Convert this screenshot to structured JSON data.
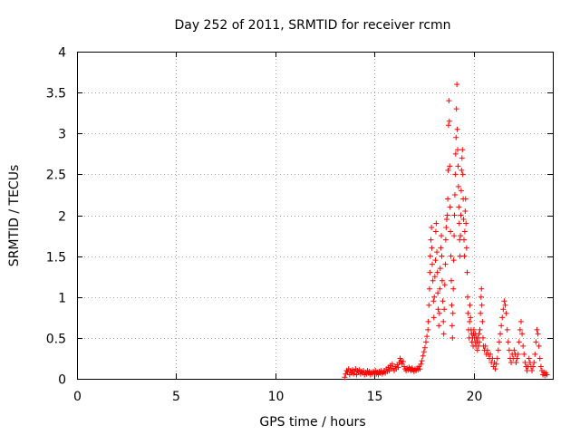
{
  "chart_data": {
    "type": "scatter",
    "title": "Day 252 of 2011, SRMTID for receiver rcmn",
    "xlabel": "GPS time / hours",
    "ylabel": "SRMTID / TECUs",
    "xlim": [
      0,
      24
    ],
    "ylim": [
      0,
      4
    ],
    "xticks": [
      0,
      5,
      10,
      15,
      20
    ],
    "xtick_labels": [
      "0",
      "5",
      "10",
      "15",
      "20"
    ],
    "yticks": [
      0,
      0.5,
      1,
      1.5,
      2,
      2.5,
      3,
      3.5,
      4
    ],
    "ytick_labels": [
      "0",
      "0.5",
      "1",
      "1.5",
      "2",
      "2.5",
      "3",
      "3.5",
      "4"
    ],
    "grid": true,
    "marker": "+",
    "color": "#ff0000",
    "series": [
      {
        "points": [
          [
            13.5,
            0.02
          ],
          [
            13.55,
            0.06
          ],
          [
            13.6,
            0.1
          ],
          [
            13.65,
            0.08
          ],
          [
            13.7,
            0.12
          ],
          [
            13.75,
            0.05
          ],
          [
            13.8,
            0.1
          ],
          [
            13.85,
            0.07
          ],
          [
            13.9,
            0.11
          ],
          [
            13.95,
            0.06
          ],
          [
            14.0,
            0.09
          ],
          [
            14.05,
            0.12
          ],
          [
            14.1,
            0.05
          ],
          [
            14.15,
            0.1
          ],
          [
            14.2,
            0.08
          ],
          [
            14.25,
            0.11
          ],
          [
            14.3,
            0.06
          ],
          [
            14.35,
            0.09
          ],
          [
            14.4,
            0.07
          ],
          [
            14.45,
            0.1
          ],
          [
            14.5,
            0.05
          ],
          [
            14.55,
            0.08
          ],
          [
            14.6,
            0.06
          ],
          [
            14.65,
            0.1
          ],
          [
            14.7,
            0.07
          ],
          [
            14.75,
            0.09
          ],
          [
            14.8,
            0.05
          ],
          [
            14.85,
            0.08
          ],
          [
            14.9,
            0.06
          ],
          [
            14.95,
            0.09
          ],
          [
            15.0,
            0.07
          ],
          [
            15.05,
            0.1
          ],
          [
            15.1,
            0.06
          ],
          [
            15.15,
            0.08
          ],
          [
            15.2,
            0.05
          ],
          [
            15.25,
            0.09
          ],
          [
            15.3,
            0.07
          ],
          [
            15.35,
            0.1
          ],
          [
            15.4,
            0.06
          ],
          [
            15.45,
            0.08
          ],
          [
            15.5,
            0.1
          ],
          [
            15.55,
            0.07
          ],
          [
            15.6,
            0.12
          ],
          [
            15.65,
            0.09
          ],
          [
            15.7,
            0.14
          ],
          [
            15.75,
            0.1
          ],
          [
            15.8,
            0.16
          ],
          [
            15.85,
            0.12
          ],
          [
            15.9,
            0.18
          ],
          [
            15.95,
            0.13
          ],
          [
            16.0,
            0.1
          ],
          [
            16.05,
            0.15
          ],
          [
            16.1,
            0.12
          ],
          [
            16.15,
            0.17
          ],
          [
            16.2,
            0.14
          ],
          [
            16.25,
            0.2
          ],
          [
            16.3,
            0.25
          ],
          [
            16.35,
            0.22
          ],
          [
            16.4,
            0.18
          ],
          [
            16.45,
            0.21
          ],
          [
            16.5,
            0.15
          ],
          [
            16.55,
            0.12
          ],
          [
            16.6,
            0.1
          ],
          [
            16.65,
            0.13
          ],
          [
            16.7,
            0.11
          ],
          [
            16.75,
            0.14
          ],
          [
            16.8,
            0.12
          ],
          [
            16.85,
            0.1
          ],
          [
            16.9,
            0.13
          ],
          [
            16.95,
            0.11
          ],
          [
            17.0,
            0.09
          ],
          [
            17.05,
            0.12
          ],
          [
            17.1,
            0.1
          ],
          [
            17.15,
            0.13
          ],
          [
            17.2,
            0.11
          ],
          [
            17.25,
            0.15
          ],
          [
            17.3,
            0.12
          ],
          [
            17.35,
            0.18
          ],
          [
            17.4,
            0.22
          ],
          [
            17.45,
            0.28
          ],
          [
            17.5,
            0.33
          ],
          [
            17.55,
            0.38
          ],
          [
            17.6,
            0.45
          ],
          [
            17.65,
            0.52
          ],
          [
            17.7,
            0.6
          ],
          [
            17.72,
            0.7
          ],
          [
            17.75,
            0.9
          ],
          [
            17.78,
            1.1
          ],
          [
            17.8,
            1.3
          ],
          [
            17.82,
            1.5
          ],
          [
            17.85,
            1.7
          ],
          [
            17.88,
            1.85
          ],
          [
            17.9,
            1.6
          ],
          [
            17.92,
            1.4
          ],
          [
            17.95,
            1.2
          ],
          [
            17.98,
            0.95
          ],
          [
            18.0,
            0.75
          ],
          [
            18.02,
            1.0
          ],
          [
            18.05,
            1.25
          ],
          [
            18.08,
            1.45
          ],
          [
            18.1,
            1.8
          ],
          [
            18.12,
            1.9
          ],
          [
            18.15,
            1.55
          ],
          [
            18.18,
            1.3
          ],
          [
            18.2,
            1.05
          ],
          [
            18.22,
            0.85
          ],
          [
            18.25,
            0.65
          ],
          [
            18.28,
            0.8
          ],
          [
            18.3,
            1.1
          ],
          [
            18.32,
            1.35
          ],
          [
            18.35,
            1.6
          ],
          [
            18.38,
            1.75
          ],
          [
            18.4,
            1.5
          ],
          [
            18.42,
            1.2
          ],
          [
            18.45,
            0.95
          ],
          [
            18.48,
            0.7
          ],
          [
            18.5,
            0.55
          ],
          [
            18.52,
            0.85
          ],
          [
            18.55,
            1.15
          ],
          [
            18.58,
            1.4
          ],
          [
            18.6,
            1.7
          ],
          [
            18.62,
            1.85
          ],
          [
            18.65,
            1.95
          ],
          [
            18.68,
            2.0
          ],
          [
            18.7,
            2.2
          ],
          [
            18.72,
            2.55
          ],
          [
            18.74,
            3.1
          ],
          [
            18.76,
            3.4
          ],
          [
            18.78,
            3.15
          ],
          [
            18.8,
            2.6
          ],
          [
            18.82,
            2.1
          ],
          [
            18.84,
            1.8
          ],
          [
            18.86,
            1.5
          ],
          [
            18.88,
            1.2
          ],
          [
            18.9,
            0.9
          ],
          [
            18.92,
            0.65
          ],
          [
            18.94,
            0.5
          ],
          [
            18.96,
            0.8
          ],
          [
            18.98,
            1.1
          ],
          [
            19.0,
            1.45
          ],
          [
            19.02,
            1.75
          ],
          [
            19.04,
            2.0
          ],
          [
            19.06,
            2.25
          ],
          [
            19.08,
            2.5
          ],
          [
            19.1,
            2.75
          ],
          [
            19.12,
            2.95
          ],
          [
            19.14,
            3.3
          ],
          [
            19.16,
            3.6
          ],
          [
            19.18,
            3.05
          ],
          [
            19.2,
            2.8
          ],
          [
            19.22,
            2.6
          ],
          [
            19.24,
            2.35
          ],
          [
            19.26,
            2.1
          ],
          [
            19.28,
            1.9
          ],
          [
            19.3,
            1.7
          ],
          [
            19.32,
            1.5
          ],
          [
            19.34,
            1.75
          ],
          [
            19.36,
            2.0
          ],
          [
            19.38,
            2.3
          ],
          [
            19.4,
            2.55
          ],
          [
            19.42,
            2.7
          ],
          [
            19.44,
            2.8
          ],
          [
            19.46,
            2.5
          ],
          [
            19.48,
            2.2
          ],
          [
            19.5,
            1.95
          ],
          [
            19.52,
            1.7
          ],
          [
            19.54,
            1.5
          ],
          [
            19.56,
            1.8
          ],
          [
            19.58,
            2.05
          ],
          [
            19.6,
            2.2
          ],
          [
            19.62,
            1.9
          ],
          [
            19.65,
            1.6
          ],
          [
            19.68,
            1.3
          ],
          [
            19.7,
            1.0
          ],
          [
            19.72,
            0.8
          ],
          [
            19.75,
            0.6
          ],
          [
            19.78,
            0.5
          ],
          [
            19.8,
            0.7
          ],
          [
            19.82,
            0.9
          ],
          [
            19.85,
            0.75
          ],
          [
            19.88,
            0.6
          ],
          [
            19.9,
            0.55
          ],
          [
            19.92,
            0.45
          ],
          [
            19.95,
            0.5
          ],
          [
            19.98,
            0.4
          ],
          [
            20.0,
            0.55
          ],
          [
            20.02,
            0.6
          ],
          [
            20.05,
            0.5
          ],
          [
            20.08,
            0.45
          ],
          [
            20.1,
            0.55
          ],
          [
            20.12,
            0.4
          ],
          [
            20.15,
            0.5
          ],
          [
            20.18,
            0.45
          ],
          [
            20.2,
            0.35
          ],
          [
            20.22,
            0.5
          ],
          [
            20.25,
            0.4
          ],
          [
            20.28,
            0.55
          ],
          [
            20.3,
            0.45
          ],
          [
            20.32,
            0.6
          ],
          [
            20.35,
            0.8
          ],
          [
            20.38,
            1.0
          ],
          [
            20.4,
            1.1
          ],
          [
            20.42,
            0.9
          ],
          [
            20.45,
            0.7
          ],
          [
            20.48,
            0.5
          ],
          [
            20.5,
            0.4
          ],
          [
            20.55,
            0.35
          ],
          [
            20.6,
            0.4
          ],
          [
            20.65,
            0.3
          ],
          [
            20.7,
            0.35
          ],
          [
            20.75,
            0.3
          ],
          [
            20.8,
            0.25
          ],
          [
            20.85,
            0.3
          ],
          [
            20.9,
            0.2
          ],
          [
            20.95,
            0.25
          ],
          [
            21.0,
            0.15
          ],
          [
            21.05,
            0.2
          ],
          [
            21.1,
            0.12
          ],
          [
            21.15,
            0.18
          ],
          [
            21.2,
            0.25
          ],
          [
            21.25,
            0.35
          ],
          [
            21.3,
            0.45
          ],
          [
            21.35,
            0.55
          ],
          [
            21.4,
            0.65
          ],
          [
            21.45,
            0.75
          ],
          [
            21.5,
            0.85
          ],
          [
            21.55,
            0.95
          ],
          [
            21.6,
            0.9
          ],
          [
            21.65,
            0.8
          ],
          [
            21.7,
            0.6
          ],
          [
            21.75,
            0.45
          ],
          [
            21.8,
            0.35
          ],
          [
            21.85,
            0.25
          ],
          [
            21.9,
            0.2
          ],
          [
            21.95,
            0.3
          ],
          [
            22.0,
            0.25
          ],
          [
            22.05,
            0.35
          ],
          [
            22.1,
            0.3
          ],
          [
            22.15,
            0.2
          ],
          [
            22.2,
            0.25
          ],
          [
            22.25,
            0.3
          ],
          [
            22.3,
            0.45
          ],
          [
            22.35,
            0.6
          ],
          [
            22.4,
            0.7
          ],
          [
            22.45,
            0.55
          ],
          [
            22.5,
            0.4
          ],
          [
            22.55,
            0.3
          ],
          [
            22.6,
            0.2
          ],
          [
            22.65,
            0.15
          ],
          [
            22.7,
            0.1
          ],
          [
            22.75,
            0.15
          ],
          [
            22.8,
            0.25
          ],
          [
            22.85,
            0.2
          ],
          [
            22.9,
            0.15
          ],
          [
            22.95,
            0.1
          ],
          [
            23.0,
            0.15
          ],
          [
            23.05,
            0.2
          ],
          [
            23.1,
            0.3
          ],
          [
            23.15,
            0.45
          ],
          [
            23.2,
            0.6
          ],
          [
            23.25,
            0.55
          ],
          [
            23.3,
            0.4
          ],
          [
            23.35,
            0.25
          ],
          [
            23.4,
            0.15
          ],
          [
            23.45,
            0.1
          ],
          [
            23.5,
            0.05
          ],
          [
            23.55,
            0.08
          ],
          [
            23.6,
            0.04
          ],
          [
            23.65,
            0.07
          ],
          [
            23.7,
            0.05
          ]
        ]
      }
    ]
  }
}
